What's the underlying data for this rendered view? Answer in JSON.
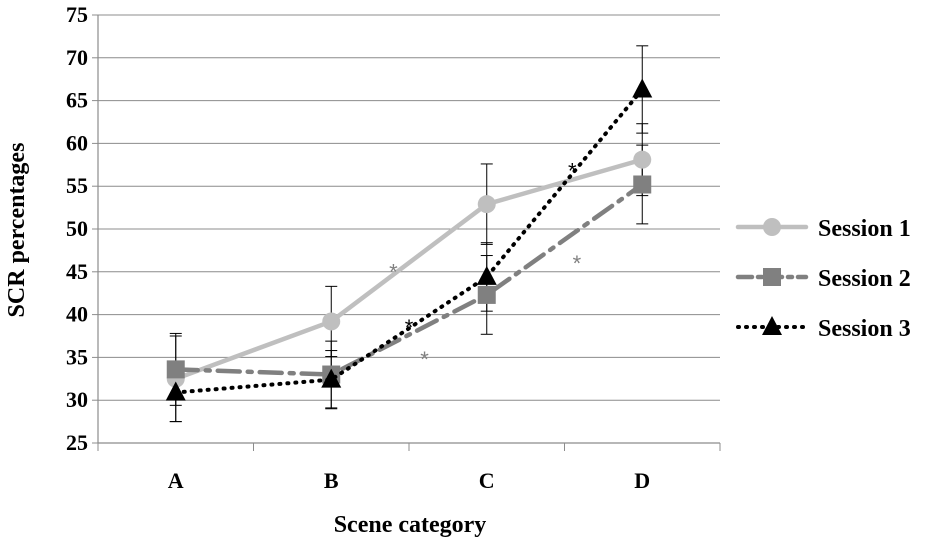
{
  "chart_data": {
    "type": "line",
    "xlabel": "Scene category",
    "ylabel": "SCR percentages",
    "categories": [
      "A",
      "B",
      "C",
      "D"
    ],
    "ylim": [
      25,
      75
    ],
    "yticks": [
      25,
      30,
      35,
      40,
      45,
      50,
      55,
      60,
      65,
      70,
      75
    ],
    "grid": "horizontal",
    "legend_position": "right",
    "series": [
      {
        "name": "Session 1",
        "values": [
          32.5,
          39.2,
          52.9,
          58.1
        ],
        "error": [
          5.0,
          4.1,
          4.7,
          4.2
        ],
        "color": "#bfbfbf",
        "marker": "circle",
        "dash": "solid"
      },
      {
        "name": "Session 2",
        "values": [
          33.6,
          33.0,
          42.3,
          55.2
        ],
        "error": [
          4.2,
          3.9,
          4.6,
          4.6
        ],
        "color": "#808080",
        "marker": "square",
        "dash": "long-dash-dot"
      },
      {
        "name": "Session 3",
        "values": [
          30.9,
          32.4,
          44.4,
          66.3
        ],
        "error": [
          3.4,
          3.4,
          4.0,
          5.1
        ],
        "color": "#000000",
        "marker": "triangle",
        "dash": "dotted"
      }
    ],
    "annotations": [
      {
        "text": "*",
        "x": 1.4,
        "y": 45.5,
        "color": "#808080"
      },
      {
        "text": "*",
        "x": 1.5,
        "y": 39.0,
        "color": "#000000"
      },
      {
        "text": "*",
        "x": 1.6,
        "y": 35.3,
        "color": "#808080"
      },
      {
        "text": "*",
        "x": 2.55,
        "y": 57.3,
        "color": "#000000"
      },
      {
        "text": "*",
        "x": 2.58,
        "y": 46.5,
        "color": "#808080"
      }
    ]
  }
}
